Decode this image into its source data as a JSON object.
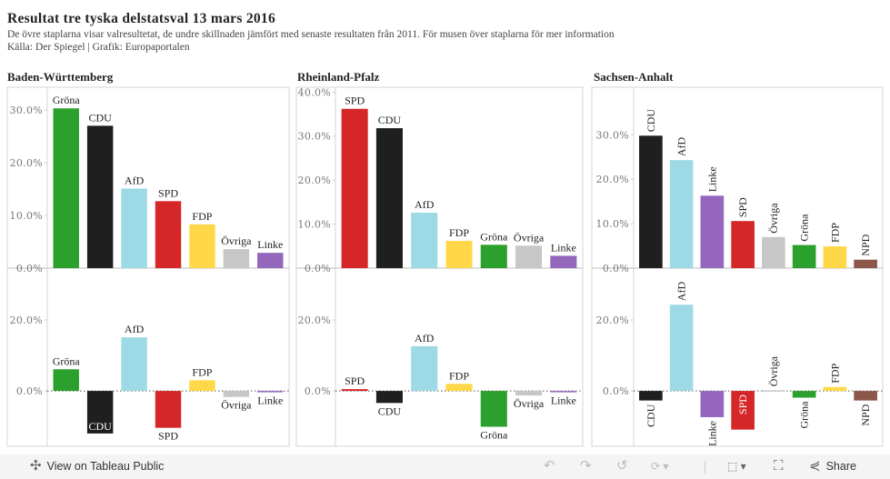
{
  "header": {
    "title": "Resultat tre tyska delstatsval 13 mars 2016",
    "subtitle": "De övre staplarna visar valresultetat, de undre skillnaden jämfört med senaste resultaten från 2011. För musen över staplarna för mer information",
    "source": "Källa: Der Spiegel | Grafik: Europaportalen"
  },
  "colors": {
    "CDU": "#1f1f1f",
    "SPD": "#d62728",
    "Gröna": "#2ca02c",
    "AfD": "#9edae5",
    "FDP": "#ffd84a",
    "Linke": "#9467bd",
    "Övriga": "#c7c7c7",
    "NPD": "#8c564b"
  },
  "chart_data": [
    {
      "type": "bar",
      "title": "Baden-Württemberg",
      "label_orientation": "horizontal",
      "results": {
        "categories": [
          "Gröna",
          "CDU",
          "AfD",
          "SPD",
          "FDP",
          "Övriga",
          "Linke"
        ],
        "values": [
          30.3,
          27.0,
          15.1,
          12.7,
          8.3,
          3.6,
          2.9
        ],
        "yticks": [
          "0.0%",
          "10.0%",
          "20.0%",
          "30.0%"
        ],
        "tick_values": [
          0,
          10,
          20,
          30
        ],
        "ylim": [
          0,
          34.3
        ]
      },
      "change": {
        "categories": [
          "Gröna",
          "CDU",
          "AfD",
          "SPD",
          "FDP",
          "Övriga",
          "Linke"
        ],
        "values": [
          6.1,
          -12.0,
          15.1,
          -10.4,
          3.0,
          -1.7,
          -0.1
        ],
        "yticks": [
          "0.0%",
          "20.0%"
        ],
        "tick_values": [
          0,
          20
        ],
        "ylim": [
          -15.6,
          34.6
        ]
      }
    },
    {
      "type": "bar",
      "title": "Rheinland-Pfalz",
      "label_orientation": "horizontal",
      "results": {
        "categories": [
          "SPD",
          "CDU",
          "AfD",
          "FDP",
          "Gröna",
          "Övriga",
          "Linke"
        ],
        "values": [
          36.2,
          31.8,
          12.6,
          6.2,
          5.3,
          5.1,
          2.8
        ],
        "yticks": [
          "0.0%",
          "10.0%",
          "20.0%",
          "30.0%",
          "40.0%"
        ],
        "tick_values": [
          0,
          10,
          20,
          30,
          40
        ],
        "ylim": [
          0,
          41.1
        ]
      },
      "change": {
        "categories": [
          "SPD",
          "CDU",
          "AfD",
          "FDP",
          "Gröna",
          "Övriga",
          "Linke"
        ],
        "values": [
          0.5,
          -3.4,
          12.6,
          2.0,
          -10.1,
          -1.3,
          -0.2
        ],
        "yticks": [
          "0.0%",
          "20.0%"
        ],
        "tick_values": [
          0,
          20
        ],
        "ylim": [
          -15.6,
          34.6
        ]
      }
    },
    {
      "type": "bar",
      "title": "Sachsen-Anhalt",
      "label_orientation": "vertical",
      "results": {
        "categories": [
          "CDU",
          "AfD",
          "Linke",
          "SPD",
          "Övriga",
          "Gröna",
          "FDP",
          "NPD"
        ],
        "values": [
          29.8,
          24.3,
          16.3,
          10.6,
          7.0,
          5.2,
          4.9,
          1.9
        ],
        "yticks": [
          "0.0%",
          "10.0%",
          "20.0%",
          "30.0%"
        ],
        "tick_values": [
          0,
          10,
          20,
          30
        ],
        "ylim": [
          0,
          40.7
        ]
      },
      "change": {
        "categories": [
          "CDU",
          "AfD",
          "Linke",
          "SPD",
          "Övriga",
          "Gröna",
          "FDP",
          "NPD"
        ],
        "values": [
          -2.7,
          24.3,
          -7.4,
          -10.9,
          0.2,
          -1.9,
          1.1,
          -2.7
        ],
        "yticks": [
          "0.0%",
          "20.0%"
        ],
        "tick_values": [
          0,
          20
        ],
        "ylim": [
          -15.6,
          34.6
        ]
      }
    }
  ],
  "footer": {
    "view_label": "View on Tableau Public",
    "share_label": "Share",
    "icons": [
      "tableau-icon",
      "undo-icon",
      "redo-icon",
      "revert-icon",
      "refresh-icon",
      "download-icon",
      "fullscreen-icon",
      "share-icon"
    ]
  }
}
